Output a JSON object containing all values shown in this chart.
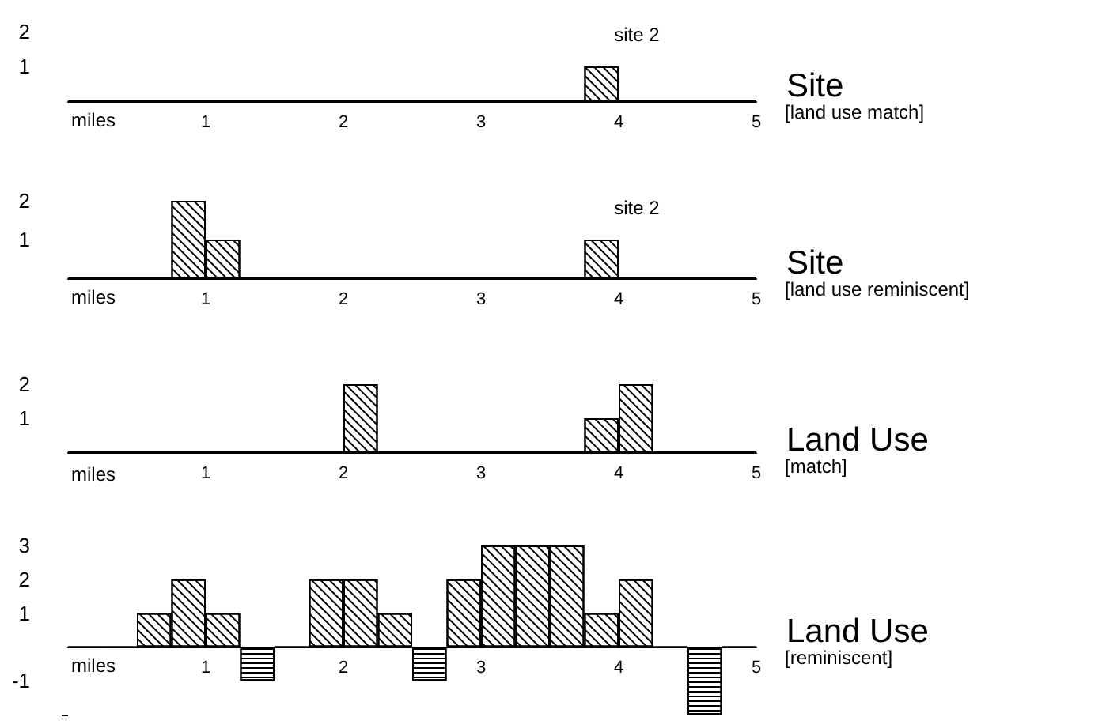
{
  "chart_data": [
    {
      "type": "histogram",
      "annotations": [
        "Site",
        "[land use match]",
        {
          "text": "site 2",
          "x": 3.875,
          "y": 1
        }
      ],
      "xlabel": "miles",
      "bins": [
        0,
        0.25,
        0.5,
        0.75,
        1,
        1.25,
        1.5,
        1.75,
        2,
        2.25,
        2.5,
        2.75,
        3,
        3.25,
        3.5,
        3.75,
        4,
        4.25,
        4.5,
        4.75,
        5
      ],
      "values": [
        0,
        0,
        0,
        0,
        0,
        0,
        0,
        0,
        0,
        0,
        0,
        0,
        0,
        0,
        0,
        1,
        0,
        0,
        0,
        0
      ],
      "xlim": [
        0,
        5
      ],
      "xticks": [
        1,
        2,
        3,
        4,
        5
      ],
      "ylim": [
        0,
        2
      ],
      "yticks": [
        1,
        2
      ]
    },
    {
      "type": "histogram",
      "annotations": [
        "Site",
        "[land use reminiscent]",
        {
          "text": "site 2",
          "x": 3.875,
          "y": 1
        }
      ],
      "xlabel": "miles",
      "bins": [
        0,
        0.25,
        0.5,
        0.75,
        1,
        1.25,
        1.5,
        1.75,
        2,
        2.25,
        2.5,
        2.75,
        3,
        3.25,
        3.5,
        3.75,
        4,
        4.25,
        4.5,
        4.75,
        5
      ],
      "values": [
        0,
        0,
        0,
        2,
        1,
        0,
        0,
        0,
        0,
        0,
        0,
        0,
        0,
        0,
        0,
        1,
        0,
        0,
        0,
        0
      ],
      "xlim": [
        0,
        5
      ],
      "xticks": [
        1,
        2,
        3,
        4,
        5
      ],
      "ylim": [
        0,
        2
      ],
      "yticks": [
        1,
        2
      ]
    },
    {
      "type": "histogram",
      "annotations": [
        "Land Use",
        "[match]"
      ],
      "xlabel": "miles",
      "bins": [
        0,
        0.25,
        0.5,
        0.75,
        1,
        1.25,
        1.5,
        1.75,
        2,
        2.25,
        2.5,
        2.75,
        3,
        3.25,
        3.5,
        3.75,
        4,
        4.25,
        4.5,
        4.75,
        5
      ],
      "values": [
        0,
        0,
        0,
        0,
        0,
        0,
        0,
        0,
        2,
        0,
        0,
        0,
        0,
        0,
        0,
        1,
        2,
        0,
        0,
        0
      ],
      "xlim": [
        0,
        5
      ],
      "xticks": [
        1,
        2,
        3,
        4,
        5
      ],
      "ylim": [
        0,
        2
      ],
      "yticks": [
        1,
        2
      ]
    },
    {
      "type": "histogram",
      "annotations": [
        "Land Use",
        "[reminiscent]"
      ],
      "xlabel": "miles",
      "bins": [
        0,
        0.25,
        0.5,
        0.75,
        1,
        1.25,
        1.5,
        1.75,
        2,
        2.25,
        2.5,
        2.75,
        3,
        3.25,
        3.5,
        3.75,
        4,
        4.25,
        4.5,
        4.75,
        5
      ],
      "values": [
        0,
        0,
        1,
        2,
        1,
        -1,
        0,
        2,
        2,
        1,
        -1,
        2,
        3,
        3,
        3,
        1,
        2,
        0,
        -2,
        0
      ],
      "xlim": [
        0,
        5
      ],
      "xticks": [
        1,
        2,
        3,
        4,
        5
      ],
      "ylim": [
        -2,
        3
      ],
      "yticks": [
        {
          "value": -2,
          "label": null
        },
        -1,
        1,
        2,
        3
      ]
    }
  ]
}
